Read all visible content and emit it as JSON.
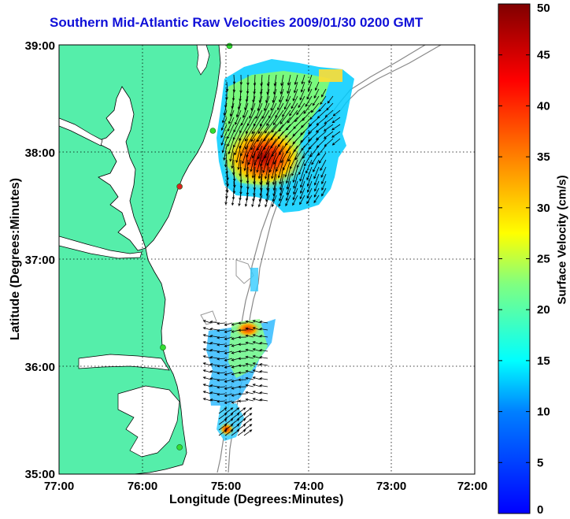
{
  "title": "Southern Mid-Atlantic Raw Velocities 2009/01/30 0200 GMT",
  "xlabel": "Longitude (Degrees:Minutes)",
  "ylabel": "Latitude (Degrees:Minutes)",
  "colorbar": {
    "label": "Surface Velocity (cm/s)",
    "ticks": [
      "0",
      "5",
      "10",
      "15",
      "20",
      "25",
      "30",
      "35",
      "40",
      "45",
      "50"
    ],
    "min": 0,
    "max": 50
  },
  "map": {
    "xticks": [
      "77:00",
      "76:00",
      "75:00",
      "74:00",
      "73:00",
      "72:00"
    ],
    "yticks": [
      "39:00",
      "38:00",
      "37:00",
      "36:00",
      "35:00"
    ],
    "lon_range": [
      -77,
      -72
    ],
    "lat_range": [
      35,
      39
    ],
    "land_color": "#55eeaa",
    "grid": "dotted",
    "stations": [
      {
        "lon": -74.95,
        "lat": 38.99,
        "color": "#33dd33"
      },
      {
        "lon": -75.15,
        "lat": 38.2,
        "color": "#33dd33"
      },
      {
        "lon": -75.55,
        "lat": 37.68,
        "color": "#dd2222"
      },
      {
        "lon": -75.75,
        "lat": 36.18,
        "color": "#33dd33"
      },
      {
        "lon": -75.55,
        "lat": 35.25,
        "color": "#33dd33"
      }
    ]
  }
}
